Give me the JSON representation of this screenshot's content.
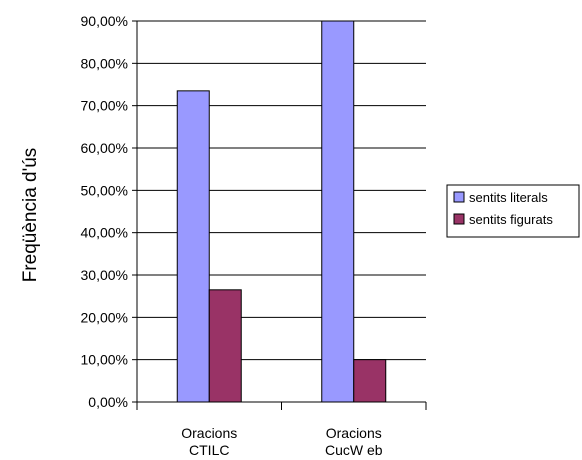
{
  "chart_data": {
    "type": "bar",
    "ylabel": "Freqüència d'ús",
    "categories": [
      [
        "Oracions",
        "CTILC"
      ],
      [
        "Oracions",
        "CucW eb"
      ]
    ],
    "series": [
      {
        "name": "sentits literals",
        "color": "#9999ff",
        "values": [
          73.5,
          90.0
        ]
      },
      {
        "name": "sentits figurats",
        "color": "#993366",
        "values": [
          26.5,
          10.0
        ]
      }
    ],
    "ylim": [
      0,
      90
    ],
    "yticks": [
      "0,00%",
      "10,00%",
      "20,00%",
      "30,00%",
      "40,00%",
      "50,00%",
      "60,00%",
      "70,00%",
      "80,00%",
      "90,00%"
    ],
    "grid": true,
    "legend_position": "right"
  }
}
